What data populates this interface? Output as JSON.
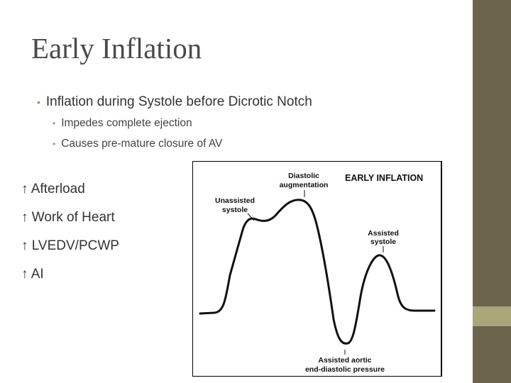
{
  "slide": {
    "title": "Early Inflation",
    "bullet": "Inflation during Systole before Dicrotic Notch",
    "sub_bullets": [
      "Impedes complete ejection",
      "Causes pre-mature closure of AV"
    ],
    "effects": [
      "↑ Afterload",
      "↑ Work of Heart",
      "↑ LVEDV/PCWP",
      "↑ AI"
    ]
  },
  "figure": {
    "heading": "EARLY INFLATION",
    "labels": {
      "diastolic_1": "Diastolic",
      "diastolic_2": "augmentation",
      "unassisted_1": "Unassisted",
      "unassisted_2": "systole",
      "assisted_1": "Assisted",
      "assisted_2": "systole",
      "aortic_1": "Assisted aortic",
      "aortic_2": "end-diastolic pressure"
    }
  },
  "colors": {
    "sidebar_dark": "#6b634b",
    "sidebar_light": "#aaa57b",
    "bullet_accent": "#9a9461"
  }
}
